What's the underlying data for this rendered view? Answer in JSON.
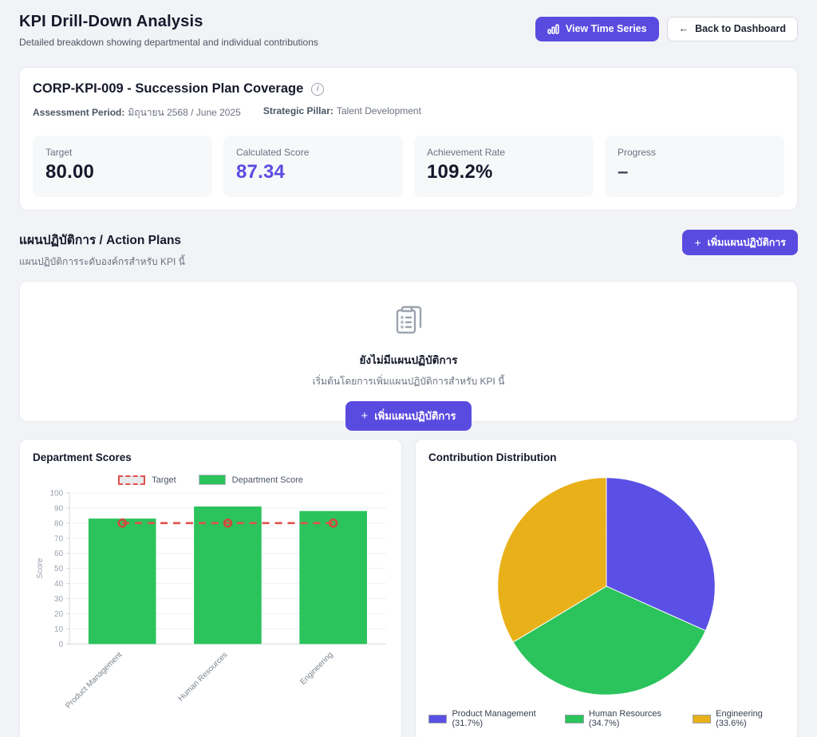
{
  "theme": {
    "brand_purple": "#5a4be0",
    "green": "#2bc35c",
    "yellow": "#e8b119",
    "red": "#e0524b",
    "page_bg": "#f2f3f6"
  },
  "icons": {
    "plus": "+",
    "arrow_left": "←",
    "info": "i"
  },
  "header": {
    "title": "KPI Drill-Down Analysis",
    "subtitle": "Detailed breakdown showing departmental and individual contributions",
    "view_time_series_label": "View Time Series",
    "back_to_dashboard_label": "Back to Dashboard"
  },
  "kpi_card": {
    "title": "CORP-KPI-009 - Succession Plan Coverage",
    "assessment_period_label": "Assessment Period:",
    "assessment_period_value": "มิถุนายน 2568 / June 2025",
    "strategic_pillar_label": "Strategic Pillar:",
    "strategic_pillar_value": "Talent Development",
    "stats": [
      {
        "label": "Target",
        "value": "80.00",
        "color": "#15192b"
      },
      {
        "label": "Calculated Score",
        "value": "87.34",
        "color": "#5a4be0"
      },
      {
        "label": "Achievement Rate",
        "value": "109.2%",
        "color": "#15192b"
      },
      {
        "label": "Progress",
        "value": "–",
        "color": "#3f4758"
      }
    ]
  },
  "action_plans": {
    "title": "แผนปฏิบัติการ / Action Plans",
    "subtitle": "แผนปฏิบัติการระดับองค์กรสำหรับ KPI นี้",
    "add_button_label": "เพิ่มแผนปฏิบัติการ",
    "empty_state": {
      "title": "ยังไม่มีแผนปฏิบัติการ",
      "subtitle": "เริ่มต้นโดยการเพิ่มแผนปฏิบัติการสำหรับ KPI นี้",
      "button_label": "เพิ่มแผนปฏิบัติการ"
    }
  },
  "chart_data": [
    {
      "type": "bar",
      "title": "Department Scores",
      "categories": [
        "Product Management",
        "Human Resources",
        "Engineering"
      ],
      "series": [
        {
          "name": "Department Score",
          "type": "bar",
          "values": [
            83,
            91,
            88
          ],
          "color": "#2bc35c"
        },
        {
          "name": "Target",
          "type": "dashed-line",
          "values": [
            80,
            80,
            80
          ],
          "color": "#e0524b"
        }
      ],
      "xlabel": "",
      "ylabel": "Score",
      "ylim": [
        0,
        100
      ],
      "ytick_step": 10,
      "grid": true,
      "legend_position": "top",
      "legend": [
        "Target",
        "Department Score"
      ]
    },
    {
      "type": "pie",
      "title": "Contribution Distribution",
      "labels": [
        "Product Management",
        "Human Resources",
        "Engineering"
      ],
      "values": [
        31.7,
        34.7,
        33.6
      ],
      "colors": [
        "#5a50e5",
        "#2bc35c",
        "#e8b119"
      ],
      "start_angle_deg": -90,
      "direction": "clockwise",
      "legend_position": "bottom",
      "legend_labels": [
        "Product Management (31.7%)",
        "Human Resources (34.7%)",
        "Engineering (33.6%)"
      ]
    }
  ]
}
